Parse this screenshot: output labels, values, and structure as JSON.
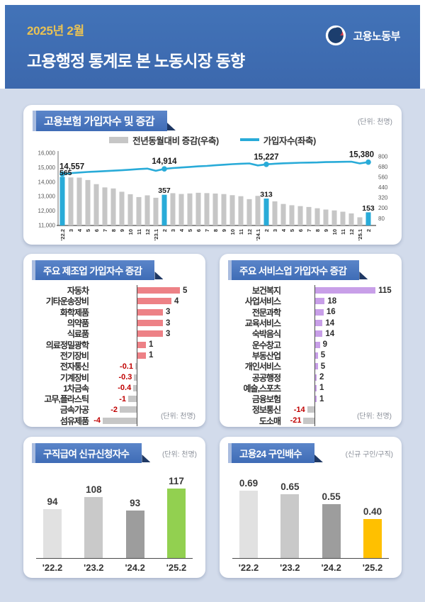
{
  "header": {
    "period": "2025년 2월",
    "title": "고용행정 통계로 본 노동시장 동향",
    "ministry": "고용노동부"
  },
  "colors": {
    "header_blue": "#3d6bb3",
    "body_bg": "#d2dbeb",
    "banner_blue": "#4a78c0",
    "accent_cyan": "#29abd8",
    "bar_gray": "#c6c6c6",
    "manufacturing_pink": "#ed8186",
    "services_purple": "#c89fe8",
    "claims_green": "#92d050",
    "ratio_yellow": "#ffc000",
    "negative_red": "#c00000",
    "gold": "#e9c254"
  },
  "chart_data": [
    {
      "id": "insured_combo",
      "type": "combo_bar_line",
      "title": "고용보험 가입자수 및 증감",
      "unit_label": "(단위: 천명)",
      "x": [
        "'22.2",
        "3",
        "4",
        "5",
        "6",
        "7",
        "8",
        "9",
        "10",
        "11",
        "12",
        "'23.1",
        "2",
        "3",
        "4",
        "5",
        "6",
        "7",
        "8",
        "9",
        "10",
        "11",
        "12",
        "'24.1",
        "2",
        "3",
        "4",
        "5",
        "6",
        "7",
        "8",
        "9",
        "10",
        "11",
        "12",
        "'25.1",
        "2"
      ],
      "series": [
        {
          "name": "전년동월대비 증감(우축)",
          "type": "bar",
          "axis": "right",
          "values": [
            565,
            558,
            556,
            528,
            480,
            442,
            430,
            392,
            363,
            330,
            350,
            322,
            357,
            375,
            366,
            372,
            380,
            376,
            371,
            365,
            352,
            340,
            306,
            344,
            313,
            280,
            250,
            235,
            225,
            215,
            200,
            185,
            175,
            160,
            140,
            95,
            153
          ],
          "highlight_indices": [
            0,
            12,
            24,
            36
          ],
          "point_labels": {
            "0": "565",
            "12": "357",
            "24": "313",
            "36": "153"
          }
        },
        {
          "name": "가입자수(좌축)",
          "type": "line",
          "axis": "left",
          "values": [
            14557,
            14620,
            14660,
            14700,
            14730,
            14760,
            14790,
            14820,
            14860,
            14900,
            14930,
            14780,
            14914,
            14970,
            15010,
            15050,
            15090,
            15120,
            15160,
            15200,
            15240,
            15270,
            15290,
            15150,
            15227,
            15270,
            15300,
            15320,
            15340,
            15350,
            15360,
            15380,
            15390,
            15400,
            15410,
            15290,
            15380
          ],
          "point_labels": {
            "0": "14,557",
            "12": "14,914",
            "24": "15,227",
            "36": "15,380"
          }
        }
      ],
      "left_axis": {
        "ticks": [
          "16,000",
          "15,000",
          "14,000",
          "13,000",
          "12,000",
          "11,000"
        ],
        "range": [
          11000,
          16000
        ]
      },
      "right_axis": {
        "ticks": [
          "800",
          "680",
          "560",
          "440",
          "320",
          "200",
          "80"
        ],
        "range": [
          0,
          840
        ]
      },
      "legend_position": "top"
    },
    {
      "id": "manufacturing",
      "type": "bar",
      "orientation": "horizontal",
      "title": "주요 제조업 가입자수 증감",
      "unit_label": "(단위: 천명)",
      "categories": [
        "자동차",
        "기타운송장비",
        "화학제품",
        "의약품",
        "식료품",
        "의료정밀광학",
        "전기장비",
        "전자통신",
        "기계장비",
        "1차금속",
        "고무,플라스틱",
        "금속가공",
        "섬유제품"
      ],
      "values": [
        5,
        4,
        3,
        3,
        3,
        1,
        1,
        -0.1,
        -0.3,
        -0.4,
        -1,
        -2,
        -4
      ],
      "labels": [
        "5",
        "4",
        "3",
        "3",
        "3",
        "1",
        "1",
        "-0.1",
        "-0.3",
        "-0.4",
        "-1",
        "-2",
        "-4"
      ]
    },
    {
      "id": "services",
      "type": "bar",
      "orientation": "horizontal",
      "title": "주요 서비스업 가입자수 증감",
      "unit_label": "(단위: 천명)",
      "categories": [
        "보건복지",
        "사업서비스",
        "전문과학",
        "교육서비스",
        "숙박음식",
        "운수창고",
        "부동산업",
        "개인서비스",
        "공공행정",
        "예술,스포츠",
        "금융보험",
        "정보통신",
        "도소매"
      ],
      "values": [
        115,
        18,
        16,
        14,
        14,
        9,
        5,
        5,
        2,
        1,
        1,
        -14,
        -21
      ],
      "labels": [
        "115",
        "18",
        "16",
        "14",
        "14",
        "9",
        "5",
        "5",
        "2",
        "1",
        "1",
        "-14",
        "-21"
      ]
    },
    {
      "id": "claims",
      "type": "bar",
      "orientation": "vertical",
      "title": "구직급여 신규신청자수",
      "unit_label": "(단위: 천명)",
      "categories": [
        "'22.2",
        "'23.2",
        "'24.2",
        "'25.2"
      ],
      "values": [
        94,
        108,
        93,
        117
      ],
      "labels": [
        "94",
        "108",
        "93",
        "117"
      ],
      "bar_colors": [
        "#e1e1e1",
        "#c9c9c9",
        "#9d9d9d",
        "#92d050"
      ],
      "ylim": [
        40,
        125
      ]
    },
    {
      "id": "job_ratio",
      "type": "bar",
      "orientation": "vertical",
      "title": "고용24 구인배수",
      "unit_label": "(신규 구인/구직)",
      "categories": [
        "'22.2",
        "'23.2",
        "'24.2",
        "'25.2"
      ],
      "values": [
        0.69,
        0.65,
        0.55,
        0.4
      ],
      "labels": [
        "0.69",
        "0.65",
        "0.55",
        "0.40"
      ],
      "bar_colors": [
        "#e1e1e1",
        "#c9c9c9",
        "#9d9d9d",
        "#ffc000"
      ],
      "ylim": [
        0,
        0.78
      ]
    }
  ]
}
